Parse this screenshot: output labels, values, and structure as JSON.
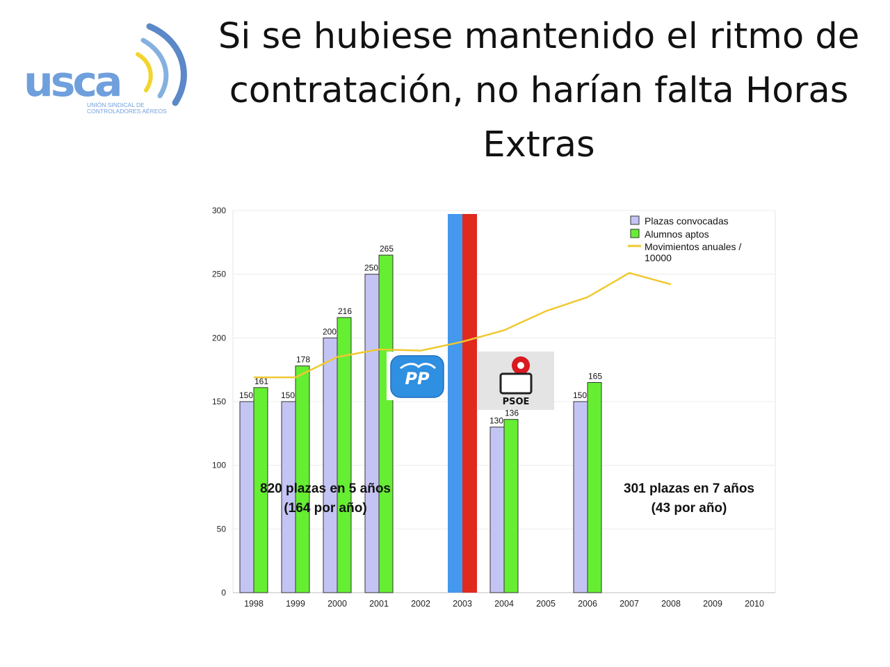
{
  "title": "Si se hubiese mantenido el ritmo de contratación, no harían falta Horas Extras",
  "logo": {
    "text": "usca",
    "subtitle_line1": "UNIÓN SINDICAL DE",
    "subtitle_line2": "CONTROLADORES AÉREOS"
  },
  "party_logos": {
    "pp": "PP",
    "psoe": "PSOE"
  },
  "colors": {
    "plazas": "#c4c4f4",
    "aptos": "#66ee33",
    "movimientos": "#f0c830",
    "pp_band": "#4499ee",
    "psoe_band": "#e02a1e"
  },
  "chart_data": {
    "type": "bar",
    "categories": [
      "1998",
      "1999",
      "2000",
      "2001",
      "2002",
      "2003",
      "2004",
      "2005",
      "2006",
      "2007",
      "2008",
      "2009",
      "2010"
    ],
    "series": [
      {
        "name": "Plazas convocadas",
        "type": "bar",
        "values": [
          150,
          150,
          200,
          250,
          null,
          null,
          130,
          null,
          150,
          null,
          null,
          null,
          null
        ]
      },
      {
        "name": "Alumnos aptos",
        "type": "bar",
        "values": [
          161,
          178,
          216,
          265,
          null,
          null,
          136,
          null,
          165,
          null,
          null,
          null,
          null
        ]
      },
      {
        "name": "Movimientos anuales / 10000",
        "type": "line",
        "values": [
          169,
          169,
          185,
          191,
          190,
          197,
          206,
          221,
          232,
          251,
          242,
          null,
          null
        ]
      }
    ],
    "ylim": [
      0,
      300
    ],
    "yticks": [
      0,
      50,
      100,
      150,
      200,
      250,
      300
    ],
    "grid": true,
    "legend": "top-right",
    "annotations": [
      {
        "line1": "820 plazas en 5 años",
        "line2": "(164 por año)"
      },
      {
        "line1": "301 plazas en 7 años",
        "line2": "(43 por año)"
      }
    ],
    "government_change": "2003"
  }
}
